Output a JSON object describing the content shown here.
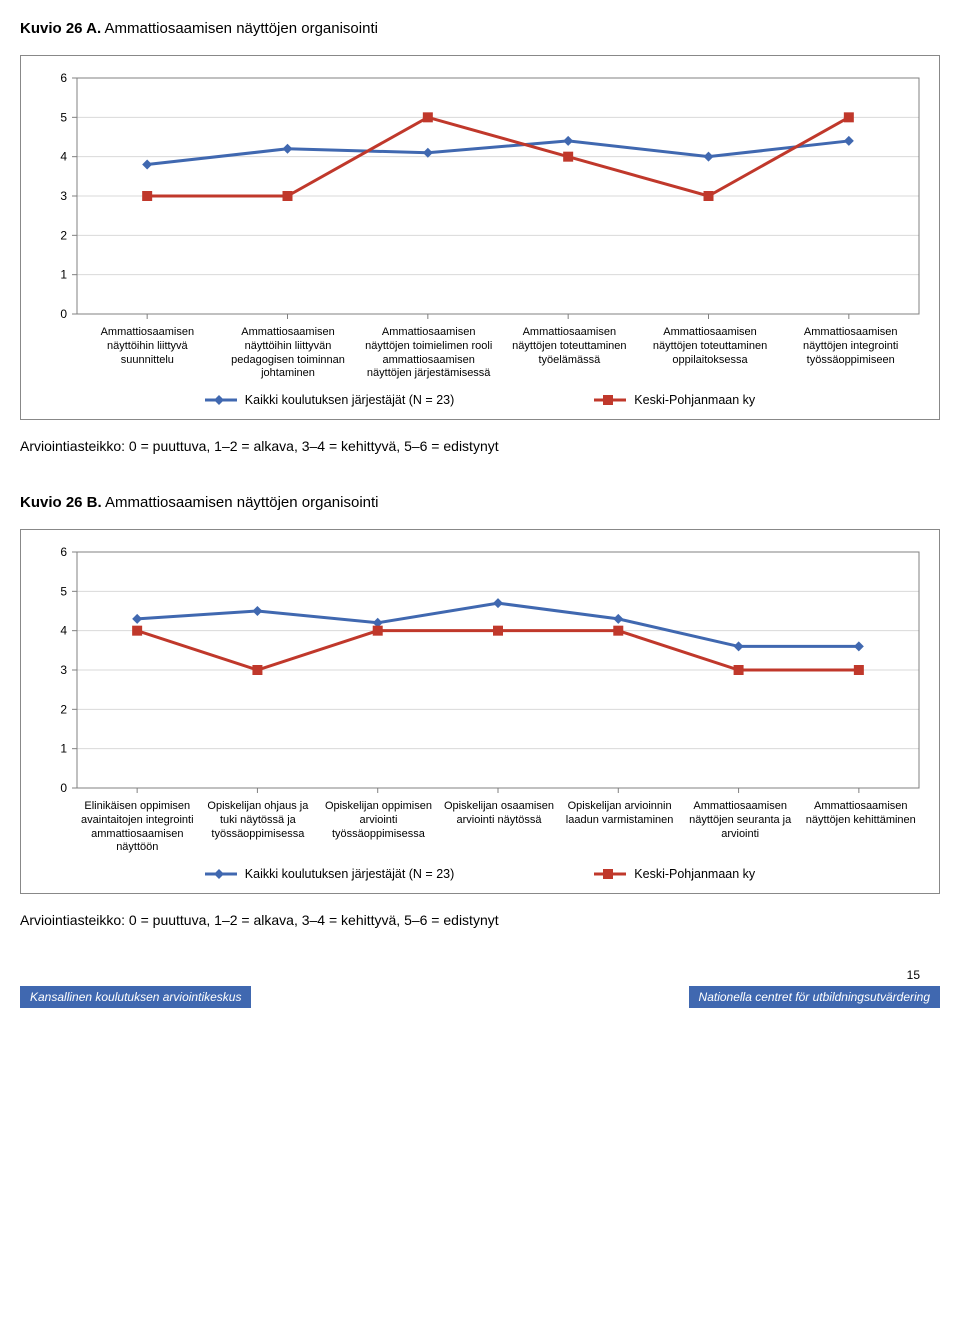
{
  "chartA": {
    "title_lead": "Kuvio 26 A.",
    "title_rest": " Ammattiosaamisen näyttöjen organisointi",
    "type": "line",
    "ylim": [
      0,
      6
    ],
    "ytick_step": 1,
    "axis_color": "#808080",
    "grid_color": "#d9d9d9",
    "background_color": "#ffffff",
    "tick_fontsize": 12,
    "label_fontsize": 11,
    "categories": [
      "Ammattiosaamisen näyttöihin liittyvä suunnittelu",
      "Ammattiosaamisen näyttöihin liittyvän pedagogisen toiminnan johtaminen",
      "Ammattiosaamisen näyttöjen toimielimen rooli ammattiosaamisen näyttöjen järjestämisessä",
      "Ammattiosaamisen näyttöjen toteuttaminen työelämässä",
      "Ammattiosaamisen näyttöjen toteuttaminen oppilaitoksessa",
      "Ammattiosaamisen näyttöjen integrointi työssäoppimiseen"
    ],
    "series": [
      {
        "name": "Kaikki koulutuksen järjestäjät (N = 23)",
        "color": "#4068b0",
        "marker": "diamond",
        "marker_size": 10,
        "line_width": 3,
        "values": [
          3.8,
          4.2,
          4.1,
          4.4,
          4.0,
          4.4
        ]
      },
      {
        "name": "Keski-Pohjanmaan ky",
        "color": "#c0382b",
        "marker": "square",
        "marker_size": 10,
        "line_width": 3,
        "values": [
          3.0,
          3.0,
          5.0,
          4.0,
          3.0,
          5.0
        ]
      }
    ],
    "legend": [
      {
        "series_index": 0,
        "label": "Kaikki koulutuksen järjestäjät (N = 23)"
      },
      {
        "series_index": 1,
        "label": "Keski-Pohjanmaan ky"
      }
    ]
  },
  "captionA": "Arviointiasteikko: 0 = puuttuva, 1–2 = alkava, 3–4 = kehittyvä, 5–6 = edistynyt",
  "chartB": {
    "title_lead": "Kuvio 26 B.",
    "title_rest": " Ammattiosaamisen näyttöjen organisointi",
    "type": "line",
    "ylim": [
      0,
      6
    ],
    "ytick_step": 1,
    "axis_color": "#808080",
    "grid_color": "#d9d9d9",
    "background_color": "#ffffff",
    "tick_fontsize": 12,
    "label_fontsize": 11,
    "categories": [
      "Elinikäisen oppimisen avaintaitojen integrointi ammattiosaamisen näyttöön",
      "Opiskelijan ohjaus ja tuki näytössä ja työssäoppimisessa",
      "Opiskelijan oppimisen arviointi työssäoppimisessa",
      "Opiskelijan osaamisen arviointi näytössä",
      "Opiskelijan arvioinnin laadun varmistaminen",
      "Ammattiosaamisen näyttöjen seuranta ja arviointi",
      "Ammattiosaamisen näyttöjen kehittäminen"
    ],
    "series": [
      {
        "name": "Kaikki koulutuksen järjestäjät (N = 23)",
        "color": "#4068b0",
        "marker": "diamond",
        "marker_size": 10,
        "line_width": 3,
        "values": [
          4.3,
          4.5,
          4.2,
          4.7,
          4.3,
          3.6,
          3.6
        ]
      },
      {
        "name": "Keski-Pohjanmaan ky",
        "color": "#c0382b",
        "marker": "square",
        "marker_size": 10,
        "line_width": 3,
        "values": [
          4.0,
          3.0,
          4.0,
          4.0,
          4.0,
          3.0,
          3.0
        ]
      }
    ],
    "legend": [
      {
        "series_index": 0,
        "label": "Kaikki koulutuksen järjestäjät (N = 23)"
      },
      {
        "series_index": 1,
        "label": "Keski-Pohjanmaan ky"
      }
    ]
  },
  "captionB": "Arviointiasteikko: 0 = puuttuva, 1–2 = alkava, 3–4 = kehittyvä, 5–6 = edistynyt",
  "page_number": "15",
  "footer_left": "Kansallinen koulutuksen arviointikeskus",
  "footer_right": "Nationella centret för utbildningsutvärdering"
}
